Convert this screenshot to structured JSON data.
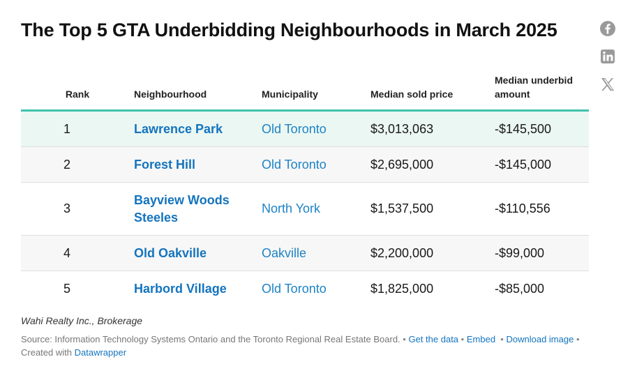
{
  "title": "The Top 5 GTA Underbidding Neighbourhoods in March 2025",
  "share": {
    "facebook": "facebook-icon",
    "linkedin": "linkedin-icon",
    "x": "x-icon"
  },
  "colors": {
    "header_rule": "#3ec3ac",
    "highlight_row": "#ebf7f2",
    "alt_row": "#f7f7f7",
    "neighbourhood_link": "#1474be",
    "municipality_link": "#1c83c6"
  },
  "chart_data": {
    "type": "table",
    "title": "The Top 5 GTA Underbidding Neighbourhoods in March 2025",
    "columns": [
      "Rank",
      "Neighbourhood",
      "Municipality",
      "Median sold price",
      "Median underbid amount"
    ],
    "rows": [
      {
        "rank": "1",
        "neighbourhood": "Lawrence Park",
        "municipality": "Old Toronto",
        "median_sold_price": "$3,013,063",
        "median_underbid_amount": "-$145,500"
      },
      {
        "rank": "2",
        "neighbourhood": "Forest Hill",
        "municipality": "Old Toronto",
        "median_sold_price": "$2,695,000",
        "median_underbid_amount": "-$145,000"
      },
      {
        "rank": "3",
        "neighbourhood": "Bayview Woods Steeles",
        "municipality": "North York",
        "median_sold_price": "$1,537,500",
        "median_underbid_amount": "-$110,556"
      },
      {
        "rank": "4",
        "neighbourhood": "Old Oakville",
        "municipality": "Oakville",
        "median_sold_price": "$2,200,000",
        "median_underbid_amount": "-$99,000"
      },
      {
        "rank": "5",
        "neighbourhood": "Harbord Village",
        "municipality": "Old Toronto",
        "median_sold_price": "$1,825,000",
        "median_underbid_amount": "-$85,000"
      }
    ]
  },
  "credit": "Wahi Realty Inc., Brokerage",
  "footer": {
    "source": "Source: Information Technology Systems Ontario and the Toronto Regional Real Estate Board.",
    "get_data": "Get the data",
    "embed": "Embed",
    "download": "Download image",
    "created_with": "Created with",
    "datawrapper": "Datawrapper",
    "separator": "•"
  }
}
